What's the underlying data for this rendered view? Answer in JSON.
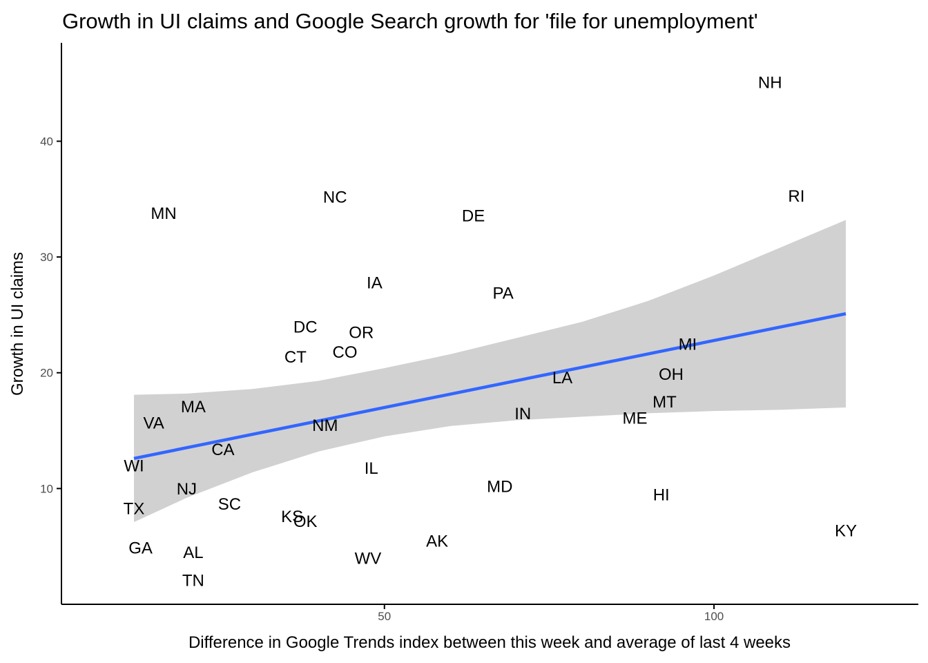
{
  "chart_data": {
    "type": "scatter",
    "title": "Growth in UI claims and Google Search growth for 'file for unemployment'",
    "xlabel": "Difference in Google Trends index between this week and average of last 4 weeks",
    "ylabel": "Growth in UI claims",
    "xlim": [
      1,
      131
    ],
    "ylim": [
      0,
      48.5
    ],
    "x_ticks": [
      50,
      100
    ],
    "y_ticks": [
      10,
      20,
      30,
      40
    ],
    "grid": false,
    "legend": "none",
    "colors": {
      "text": "#000000",
      "trend_line": "#3366ff",
      "band": "#cccccc",
      "axis": "#000000",
      "tick_text": "#4d4d4d"
    },
    "points": [
      {
        "label": "NH",
        "x": 108.5,
        "y": 45.1
      },
      {
        "label": "RI",
        "x": 112.5,
        "y": 35.3
      },
      {
        "label": "MN",
        "x": 16.5,
        "y": 33.8
      },
      {
        "label": "NC",
        "x": 42.5,
        "y": 35.2
      },
      {
        "label": "DE",
        "x": 63.5,
        "y": 33.6
      },
      {
        "label": "IA",
        "x": 48.5,
        "y": 27.8
      },
      {
        "label": "PA",
        "x": 68.0,
        "y": 26.9
      },
      {
        "label": "DC",
        "x": 38.0,
        "y": 24.0
      },
      {
        "label": "OR",
        "x": 46.5,
        "y": 23.5
      },
      {
        "label": "CO",
        "x": 44.0,
        "y": 21.8
      },
      {
        "label": "CT",
        "x": 36.5,
        "y": 21.4
      },
      {
        "label": "MI",
        "x": 96.0,
        "y": 22.5
      },
      {
        "label": "OH",
        "x": 93.5,
        "y": 19.9
      },
      {
        "label": "LA",
        "x": 77.0,
        "y": 19.6
      },
      {
        "label": "MT",
        "x": 92.5,
        "y": 17.5
      },
      {
        "label": "IN",
        "x": 71.0,
        "y": 16.5
      },
      {
        "label": "ME",
        "x": 88.0,
        "y": 16.1
      },
      {
        "label": "MA",
        "x": 21.0,
        "y": 17.1
      },
      {
        "label": "VA",
        "x": 15.0,
        "y": 15.7
      },
      {
        "label": "NM",
        "x": 41.0,
        "y": 15.5
      },
      {
        "label": "CA",
        "x": 25.5,
        "y": 13.4
      },
      {
        "label": "WI",
        "x": 12.0,
        "y": 12.0
      },
      {
        "label": "IL",
        "x": 48.0,
        "y": 11.8
      },
      {
        "label": "MD",
        "x": 67.5,
        "y": 10.2
      },
      {
        "label": "HI",
        "x": 92.0,
        "y": 9.5
      },
      {
        "label": "NJ",
        "x": 20.0,
        "y": 10.0
      },
      {
        "label": "TX",
        "x": 12.0,
        "y": 8.3
      },
      {
        "label": "SC",
        "x": 26.5,
        "y": 8.7
      },
      {
        "label": "KS",
        "x": 36.0,
        "y": 7.6
      },
      {
        "label": "OK",
        "x": 38.0,
        "y": 7.2
      },
      {
        "label": "KY",
        "x": 120.0,
        "y": 6.4
      },
      {
        "label": "AK",
        "x": 58.0,
        "y": 5.5
      },
      {
        "label": "GA",
        "x": 13.0,
        "y": 4.9
      },
      {
        "label": "AL",
        "x": 21.0,
        "y": 4.5
      },
      {
        "label": "WV",
        "x": 47.5,
        "y": 4.0
      },
      {
        "label": "TN",
        "x": 21.0,
        "y": 2.1
      }
    ],
    "trend_line": {
      "x": [
        12.0,
        120.0
      ],
      "y": [
        12.6,
        25.1
      ]
    },
    "confidence_band": {
      "x": [
        12.0,
        20.0,
        30.0,
        40.0,
        50.0,
        60.0,
        70.0,
        80.0,
        90.0,
        100.0,
        110.0,
        120.0
      ],
      "lower": [
        7.1,
        9.2,
        11.4,
        13.2,
        14.5,
        15.4,
        15.9,
        16.2,
        16.5,
        16.7,
        16.8,
        17.0
      ],
      "upper": [
        18.1,
        18.2,
        18.6,
        19.3,
        20.4,
        21.6,
        23.0,
        24.4,
        26.2,
        28.4,
        30.8,
        33.2
      ]
    }
  }
}
